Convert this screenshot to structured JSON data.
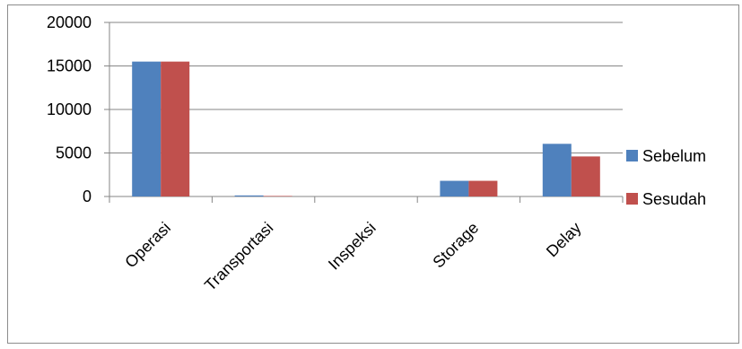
{
  "chart_data": {
    "type": "bar",
    "categories": [
      "Operasi",
      "Transportasi",
      "Inspeksi",
      "Storage",
      "Delay"
    ],
    "series": [
      {
        "name": "Sebelum",
        "color": "#4f81bd",
        "values": [
          15500,
          120,
          0,
          1800,
          6050
        ]
      },
      {
        "name": "Sesudah",
        "color": "#c0504d",
        "values": [
          15500,
          60,
          0,
          1800,
          4600
        ]
      }
    ],
    "yticks": [
      0,
      5000,
      10000,
      15000,
      20000
    ],
    "ylim": [
      0,
      20000
    ],
    "grid": true,
    "legend": "right"
  }
}
